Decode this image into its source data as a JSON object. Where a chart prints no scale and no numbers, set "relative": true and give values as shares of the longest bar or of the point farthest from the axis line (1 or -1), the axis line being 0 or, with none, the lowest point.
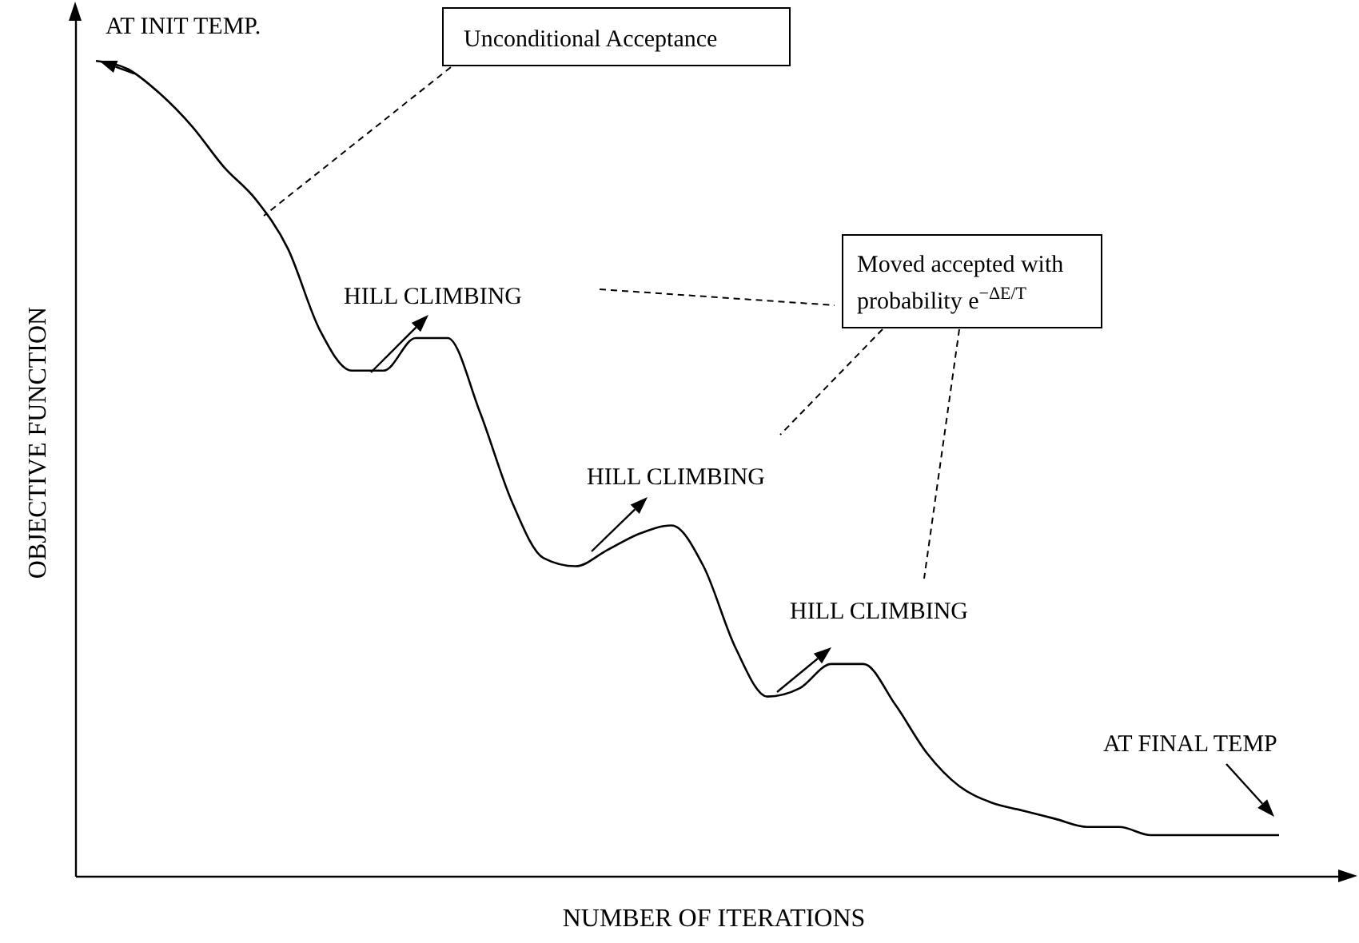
{
  "chart_data": {
    "type": "line",
    "relative": true,
    "xlabel": "NUMBER OF ITERATIONS",
    "ylabel": "OBJECTIVE FUNCTION",
    "categories": [
      null,
      null,
      null,
      null,
      null,
      null,
      null,
      null,
      null,
      null,
      null,
      null,
      null,
      null,
      null,
      null,
      null,
      null,
      null,
      null,
      null,
      null,
      null,
      null,
      null,
      null,
      null,
      null,
      null,
      null,
      null,
      null,
      null,
      null,
      null,
      null,
      null,
      null
    ],
    "series": [
      {
        "color": "#000000",
        "values": [
          1.0,
          0.99,
          0.96,
          0.92,
          0.87,
          0.83,
          0.77,
          0.67,
          0.62,
          0.62,
          0.66,
          0.66,
          0.57,
          0.46,
          0.39,
          0.38,
          0.4,
          0.42,
          0.43,
          0.38,
          0.28,
          0.22,
          0.23,
          0.26,
          0.26,
          0.21,
          0.15,
          0.11,
          0.09,
          0.08,
          0.07,
          0.06,
          0.06,
          0.05,
          0.05,
          0.05,
          0.05,
          0.05
        ]
      }
    ],
    "annotations": [
      "AT INIT TEMP.",
      "Unconditional Acceptance",
      "HILL CLIMBING",
      "Moved accepted with",
      "probability e$^{−ΔE/T}$",
      "HILL CLIMBING",
      "HILL CLIMBING",
      "AT FINAL TEMP"
    ],
    "grid": false
  }
}
